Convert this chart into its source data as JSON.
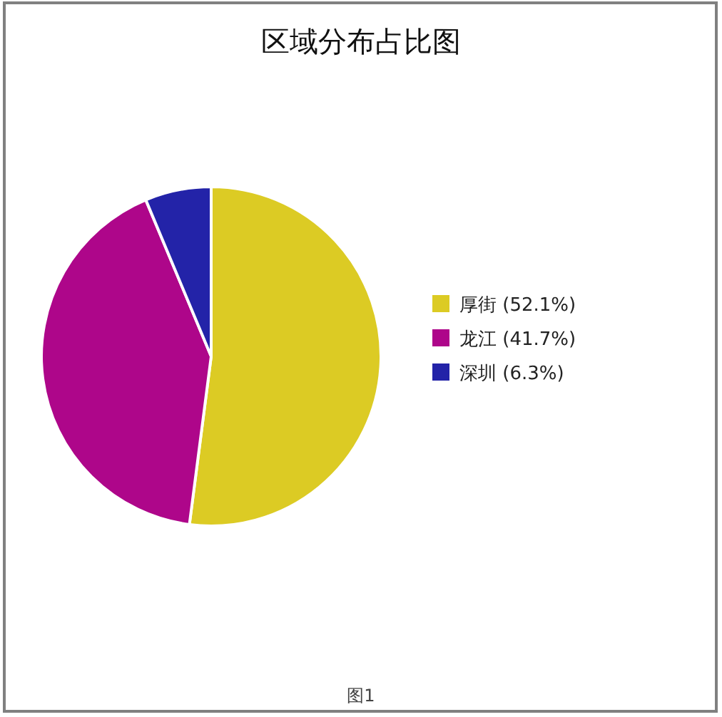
{
  "chart_data": {
    "type": "pie",
    "title": "区域分布占比图",
    "categories": [
      "厚街 (52.1%)",
      "龙江 (41.7%)",
      "深圳 (6.3%)"
    ],
    "values": [
      52.1,
      41.7,
      6.3
    ],
    "colors": [
      "#dccb24",
      "#ae068a",
      "#2323a8"
    ],
    "legend": "right",
    "annotations": [
      "图1"
    ]
  }
}
